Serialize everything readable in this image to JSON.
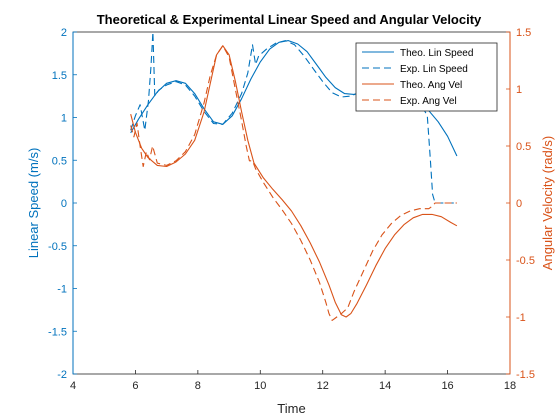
{
  "chart_data": {
    "type": "line",
    "title": "Theoretical & Experimental Linear Speed and Angular Velocity",
    "xlabel": "Time",
    "ylabel_left": "Linear Speed (m/s)",
    "ylabel_right": "Angular Velocity (rad/s)",
    "xlim": [
      4,
      18
    ],
    "ylim_left": [
      -2,
      2
    ],
    "ylim_right": [
      -1.5,
      1.5
    ],
    "x_ticks": [
      "4",
      "6",
      "8",
      "10",
      "12",
      "14",
      "16",
      "18"
    ],
    "y_left_ticks": [
      "-2",
      "-1.5",
      "-1",
      "-0.5",
      "0",
      "0.5",
      "1",
      "1.5",
      "2"
    ],
    "y_right_ticks": [
      "-1.5",
      "-1",
      "-0.5",
      "0",
      "0.5",
      "1",
      "1.5"
    ],
    "colors": {
      "left": "#0072BD",
      "right": "#D95319"
    },
    "legend_position": "top-right",
    "series": [
      {
        "name": "Theo. Lin Speed",
        "axis": "left",
        "style": "solid",
        "x": [
          5.85,
          6.1,
          6.4,
          6.7,
          7.0,
          7.3,
          7.6,
          7.9,
          8.2,
          8.5,
          8.8,
          9.1,
          9.4,
          9.7,
          10.0,
          10.3,
          10.6,
          10.9,
          11.2,
          11.5,
          11.8,
          12.1,
          12.4,
          12.7,
          13.0,
          13.3,
          13.6,
          13.9,
          14.2,
          14.5,
          14.8,
          15.1,
          15.4,
          15.7,
          16.0,
          16.3
        ],
        "y": [
          0.82,
          0.98,
          1.15,
          1.3,
          1.4,
          1.43,
          1.4,
          1.28,
          1.1,
          0.95,
          0.92,
          1.02,
          1.22,
          1.45,
          1.65,
          1.8,
          1.88,
          1.9,
          1.86,
          1.77,
          1.62,
          1.47,
          1.35,
          1.28,
          1.27,
          1.3,
          1.33,
          1.34,
          1.33,
          1.3,
          1.25,
          1.18,
          1.08,
          0.95,
          0.78,
          0.55
        ]
      },
      {
        "name": "Exp. Lin Speed",
        "axis": "left",
        "style": "dashed",
        "x": [
          5.85,
          6.0,
          6.15,
          6.3,
          6.42,
          6.5,
          6.56,
          6.62,
          6.75,
          7.0,
          7.3,
          7.6,
          7.9,
          8.2,
          8.5,
          8.8,
          9.1,
          9.4,
          9.6,
          9.75,
          9.85,
          9.95,
          10.2,
          10.5,
          10.8,
          11.1,
          11.4,
          11.7,
          12.0,
          12.3,
          12.6,
          12.9,
          13.2,
          13.5,
          13.8,
          14.1,
          14.4,
          14.7,
          15.0,
          15.2,
          15.35,
          15.45,
          15.52,
          15.6,
          16.2
        ],
        "y": [
          0.85,
          1.02,
          1.15,
          0.85,
          1.2,
          1.6,
          2.0,
          1.25,
          1.32,
          1.38,
          1.42,
          1.38,
          1.25,
          1.07,
          0.93,
          0.92,
          1.05,
          1.28,
          1.52,
          1.85,
          1.62,
          1.72,
          1.8,
          1.87,
          1.9,
          1.85,
          1.72,
          1.57,
          1.42,
          1.29,
          1.24,
          1.25,
          1.3,
          1.34,
          1.36,
          1.36,
          1.33,
          1.28,
          1.2,
          1.12,
          1.02,
          0.5,
          0.1,
          0.0,
          0.0
        ]
      },
      {
        "name": "Theo. Ang Vel",
        "axis": "right",
        "style": "solid",
        "x": [
          5.85,
          6.0,
          6.2,
          6.4,
          6.7,
          7.0,
          7.3,
          7.6,
          7.9,
          8.2,
          8.4,
          8.6,
          8.8,
          9.0,
          9.2,
          9.4,
          9.6,
          9.8,
          10.1,
          10.4,
          10.7,
          11.0,
          11.3,
          11.6,
          11.9,
          12.2,
          12.4,
          12.6,
          12.75,
          12.9,
          13.1,
          13.4,
          13.7,
          14.0,
          14.3,
          14.6,
          14.9,
          15.2,
          15.5,
          15.8,
          16.1,
          16.3
        ],
        "y": [
          0.78,
          0.62,
          0.48,
          0.4,
          0.33,
          0.32,
          0.36,
          0.43,
          0.55,
          0.8,
          1.05,
          1.3,
          1.38,
          1.3,
          1.07,
          0.8,
          0.55,
          0.35,
          0.22,
          0.12,
          0.03,
          -0.07,
          -0.2,
          -0.35,
          -0.52,
          -0.72,
          -0.87,
          -0.98,
          -1.0,
          -0.97,
          -0.88,
          -0.72,
          -0.55,
          -0.4,
          -0.28,
          -0.19,
          -0.13,
          -0.1,
          -0.1,
          -0.12,
          -0.17,
          -0.2
        ]
      },
      {
        "name": "Exp. Ang Vel",
        "axis": "right",
        "style": "dashed",
        "x": [
          5.85,
          5.95,
          6.05,
          6.15,
          6.25,
          6.35,
          6.45,
          6.55,
          6.7,
          7.0,
          7.3,
          7.6,
          7.9,
          8.2,
          8.4,
          8.6,
          8.8,
          9.0,
          9.2,
          9.4,
          9.55,
          9.65,
          9.75,
          9.85,
          10.1,
          10.4,
          10.7,
          11.0,
          11.3,
          11.6,
          11.9,
          12.1,
          12.2,
          12.3,
          12.45,
          12.6,
          12.8,
          13.0,
          13.3,
          13.6,
          13.9,
          14.2,
          14.5,
          14.8,
          15.1,
          15.3,
          15.4,
          15.5,
          15.6,
          16.3
        ],
        "y": [
          0.68,
          0.58,
          0.7,
          0.5,
          0.32,
          0.45,
          0.38,
          0.5,
          0.35,
          0.33,
          0.37,
          0.45,
          0.6,
          0.88,
          1.12,
          1.3,
          1.38,
          1.28,
          1.0,
          0.72,
          0.5,
          0.37,
          0.37,
          0.3,
          0.18,
          0.05,
          -0.06,
          -0.18,
          -0.33,
          -0.5,
          -0.7,
          -0.87,
          -0.97,
          -1.03,
          -1.0,
          -0.97,
          -0.92,
          -0.78,
          -0.6,
          -0.42,
          -0.28,
          -0.18,
          -0.11,
          -0.07,
          -0.05,
          -0.05,
          -0.05,
          -0.03,
          0.0,
          0.0
        ]
      }
    ]
  }
}
